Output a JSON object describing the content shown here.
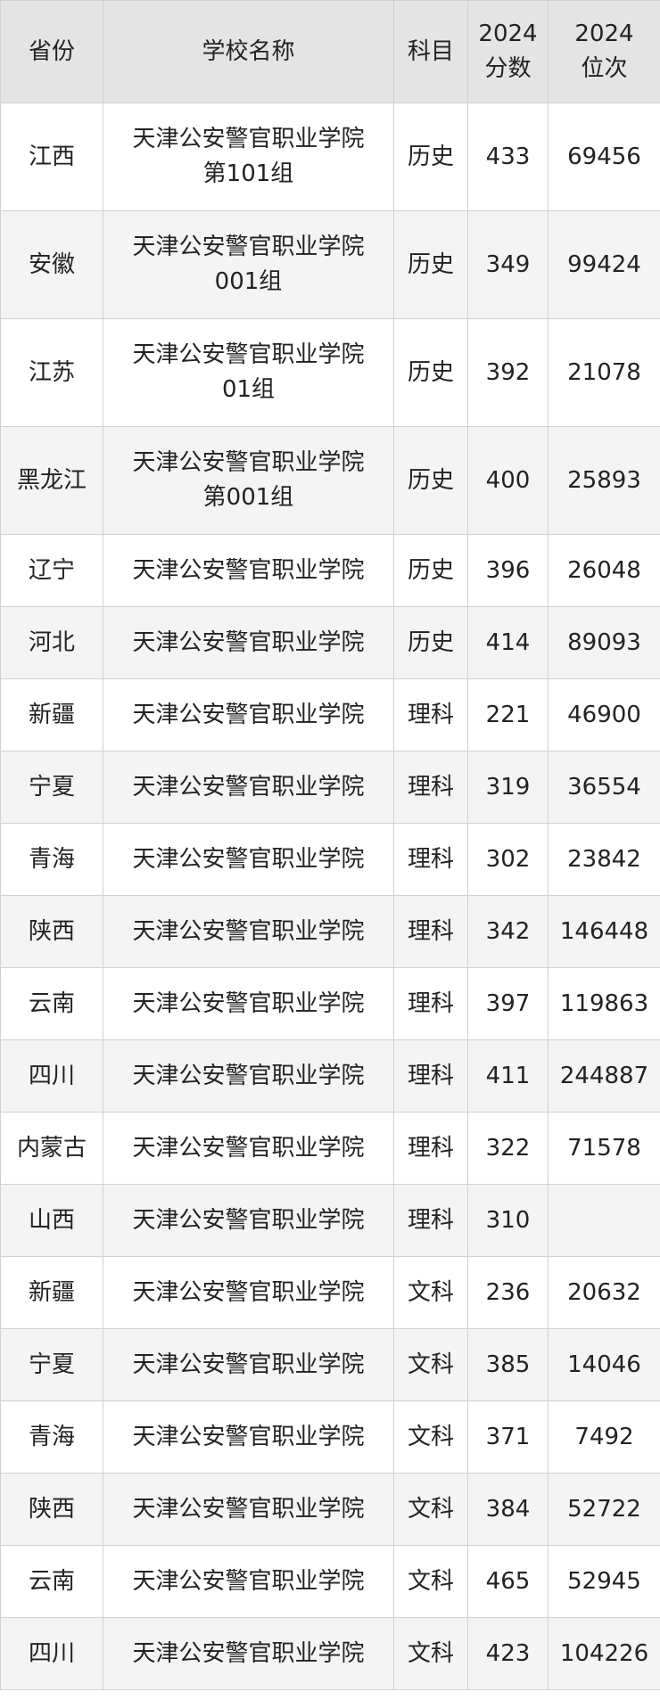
{
  "table": {
    "header": [
      "省份",
      "学校名称",
      "科目",
      "2024\n分数",
      "2024\n位次"
    ],
    "rows": [
      [
        "江西",
        "天津公安警官职业学院\n第101组",
        "历史",
        "433",
        "69456"
      ],
      [
        "安徽",
        "天津公安警官职业学院\n001组",
        "历史",
        "349",
        "99424"
      ],
      [
        "江苏",
        "天津公安警官职业学院\n01组",
        "历史",
        "392",
        "21078"
      ],
      [
        "黑龙江",
        "天津公安警官职业学院\n第001组",
        "历史",
        "400",
        "25893"
      ],
      [
        "辽宁",
        "天津公安警官职业学院",
        "历史",
        "396",
        "26048"
      ],
      [
        "河北",
        "天津公安警官职业学院",
        "历史",
        "414",
        "89093"
      ],
      [
        "新疆",
        "天津公安警官职业学院",
        "理科",
        "221",
        "46900"
      ],
      [
        "宁夏",
        "天津公安警官职业学院",
        "理科",
        "319",
        "36554"
      ],
      [
        "青海",
        "天津公安警官职业学院",
        "理科",
        "302",
        "23842"
      ],
      [
        "陕西",
        "天津公安警官职业学院",
        "理科",
        "342",
        "146448"
      ],
      [
        "云南",
        "天津公安警官职业学院",
        "理科",
        "397",
        "119863"
      ],
      [
        "四川",
        "天津公安警官职业学院",
        "理科",
        "411",
        "244887"
      ],
      [
        "内蒙古",
        "天津公安警官职业学院",
        "理科",
        "322",
        "71578"
      ],
      [
        "山西",
        "天津公安警官职业学院",
        "理科",
        "310",
        null
      ],
      [
        "新疆",
        "天津公安警官职业学院",
        "文科",
        "236",
        "20632"
      ],
      [
        "宁夏",
        "天津公安警官职业学院",
        "文科",
        "385",
        "14046"
      ],
      [
        "青海",
        "天津公安警官职业学院",
        "文科",
        "371",
        "7492"
      ],
      [
        "陕西",
        "天津公安警官职业学院",
        "文科",
        "384",
        "52722"
      ],
      [
        "云南",
        "天津公安警官职业学院",
        "文科",
        "465",
        "52945"
      ],
      [
        "四川",
        "天津公安警官职业学院",
        "文科",
        "423",
        "104226"
      ]
    ]
  }
}
